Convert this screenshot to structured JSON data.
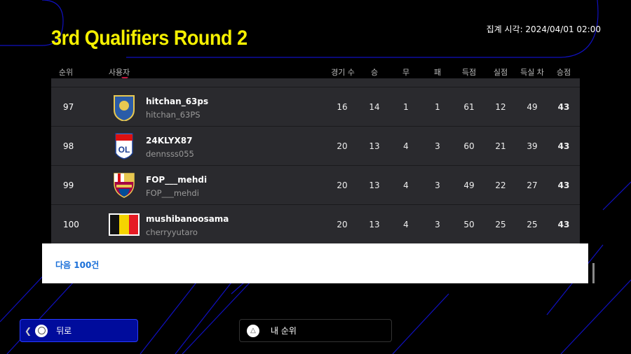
{
  "title": "3rd Qualifiers Round 2",
  "aggregation": "집계 시각:  2024/04/01 02:00",
  "headers": {
    "rank": "순위",
    "user": "사용자",
    "played": "경기 수",
    "win": "승",
    "draw": "무",
    "loss": "패",
    "gf": "득점",
    "ga": "실점",
    "gd": "득실 차",
    "pts": "승점"
  },
  "rows": [
    {
      "rank": "97",
      "name": "hitchan_63ps",
      "id": "hitchan_63PS",
      "played": "16",
      "win": "14",
      "draw": "1",
      "loss": "1",
      "gf": "61",
      "ga": "12",
      "gd": "49",
      "pts": "43",
      "badge": "crest-blue"
    },
    {
      "rank": "98",
      "name": "24KLYX87",
      "id": "dennsss055",
      "played": "20",
      "win": "13",
      "draw": "4",
      "loss": "3",
      "gf": "60",
      "ga": "21",
      "gd": "39",
      "pts": "43",
      "badge": "olympique-lyonnais"
    },
    {
      "rank": "99",
      "name": "FOP___mehdi",
      "id": "FOP___mehdi",
      "played": "20",
      "win": "13",
      "draw": "4",
      "loss": "3",
      "gf": "49",
      "ga": "22",
      "gd": "27",
      "pts": "43",
      "badge": "fc-barcelona"
    },
    {
      "rank": "100",
      "name": "mushibanoosama",
      "id": "cherryyutaro",
      "played": "20",
      "win": "13",
      "draw": "4",
      "loss": "3",
      "gf": "50",
      "ga": "25",
      "gd": "25",
      "pts": "43",
      "badge": "belgium-flag"
    }
  ],
  "next_label": "다음 100건",
  "buttons": {
    "back": "뒤로",
    "my_rank": "내 순위"
  },
  "colors": {
    "title": "#f5f000",
    "accent": "#000c9c",
    "link": "#1a6fd8"
  }
}
